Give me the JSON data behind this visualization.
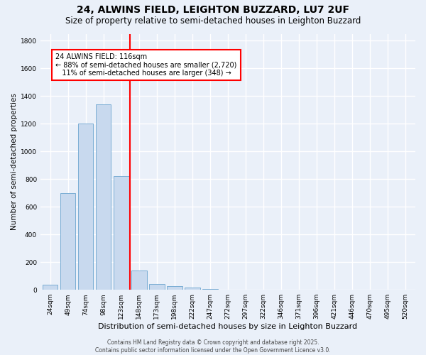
{
  "title": "24, ALWINS FIELD, LEIGHTON BUZZARD, LU7 2UF",
  "subtitle": "Size of property relative to semi-detached houses in Leighton Buzzard",
  "xlabel": "Distribution of semi-detached houses by size in Leighton Buzzard",
  "ylabel": "Number of semi-detached properties",
  "categories": [
    "24sqm",
    "49sqm",
    "74sqm",
    "98sqm",
    "123sqm",
    "148sqm",
    "173sqm",
    "198sqm",
    "222sqm",
    "247sqm",
    "272sqm",
    "297sqm",
    "322sqm",
    "346sqm",
    "371sqm",
    "396sqm",
    "421sqm",
    "446sqm",
    "470sqm",
    "495sqm",
    "520sqm"
  ],
  "values": [
    38,
    700,
    1200,
    1340,
    820,
    140,
    40,
    25,
    18,
    5,
    3,
    0,
    0,
    0,
    0,
    0,
    0,
    0,
    0,
    0,
    0
  ],
  "bar_color": "#c8d9ee",
  "bar_edge_color": "#7aadd4",
  "vline_x_index": 4.5,
  "vline_color": "red",
  "annotation_text": "24 ALWINS FIELD: 116sqm\n← 88% of semi-detached houses are smaller (2,720)\n   11% of semi-detached houses are larger (348) →",
  "annotation_box_color": "white",
  "annotation_box_edge_color": "red",
  "ylim": [
    0,
    1850
  ],
  "yticks": [
    0,
    200,
    400,
    600,
    800,
    1000,
    1200,
    1400,
    1600,
    1800
  ],
  "background_color": "#eaf0f9",
  "grid_color": "#ffffff",
  "footnote": "Contains HM Land Registry data © Crown copyright and database right 2025.\nContains public sector information licensed under the Open Government Licence v3.0.",
  "title_fontsize": 10,
  "subtitle_fontsize": 8.5,
  "ylabel_fontsize": 7.5,
  "xlabel_fontsize": 8,
  "tick_fontsize": 6.5,
  "annotation_fontsize": 7,
  "footnote_fontsize": 5.5
}
